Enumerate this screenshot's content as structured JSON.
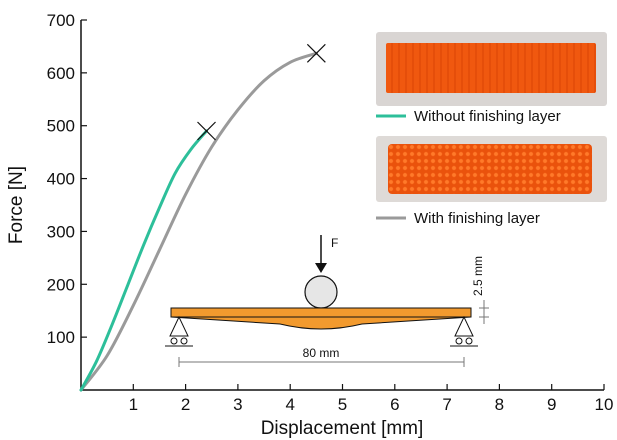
{
  "chart_data": {
    "type": "line",
    "xlabel": "Displacement [mm]",
    "ylabel": "Force [N]",
    "xlim": [
      0,
      10
    ],
    "ylim": [
      0,
      700
    ],
    "x_ticks": [
      "1",
      "2",
      "3",
      "4",
      "5",
      "6",
      "7",
      "8",
      "9",
      "10"
    ],
    "y_ticks": [
      "100",
      "200",
      "300",
      "400",
      "500",
      "600",
      "700"
    ],
    "grid": false,
    "legend_position": "right",
    "series": [
      {
        "name": "Without finishing layer",
        "color": "#2dbf9a",
        "x": [
          0,
          0.3,
          0.6,
          0.9,
          1.2,
          1.5,
          1.8,
          2.1,
          2.4
        ],
        "y": [
          0,
          55,
          125,
          200,
          275,
          345,
          410,
          455,
          490
        ],
        "failure": "cross"
      },
      {
        "name": "With finishing layer",
        "color": "#9a9a9a",
        "x": [
          0,
          0.5,
          1.0,
          1.5,
          2.0,
          2.5,
          3.0,
          3.5,
          4.0,
          4.5
        ],
        "y": [
          0,
          65,
          160,
          265,
          370,
          460,
          530,
          585,
          620,
          637
        ],
        "failure": "cross"
      }
    ]
  },
  "inset": {
    "load_label": "F",
    "span_label": "80 mm",
    "thickness_label": "2.5 mm"
  },
  "photos": {
    "top": "specimen photo without finishing layer",
    "bottom": "specimen photo with finishing layer"
  }
}
